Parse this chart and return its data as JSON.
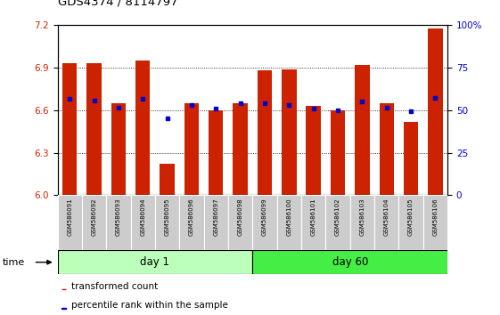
{
  "title": "GDS4374 / 8114797",
  "samples": [
    "GSM586091",
    "GSM586092",
    "GSM586093",
    "GSM586094",
    "GSM586095",
    "GSM586096",
    "GSM586097",
    "GSM586098",
    "GSM586099",
    "GSM586100",
    "GSM586101",
    "GSM586102",
    "GSM586103",
    "GSM586104",
    "GSM586105",
    "GSM586106"
  ],
  "transformed_count": [
    6.93,
    6.93,
    6.65,
    6.95,
    6.22,
    6.65,
    6.6,
    6.65,
    6.88,
    6.89,
    6.63,
    6.6,
    6.92,
    6.65,
    6.52,
    7.18
  ],
  "percentile_rank": [
    6.68,
    6.67,
    6.62,
    6.68,
    6.54,
    6.64,
    6.61,
    6.65,
    6.65,
    6.64,
    6.61,
    6.6,
    6.66,
    6.62,
    6.59,
    6.69
  ],
  "ymin": 6.0,
  "ymax": 7.2,
  "yticks": [
    6.0,
    6.3,
    6.6,
    6.9,
    7.2
  ],
  "right_yticks": [
    0,
    25,
    50,
    75,
    100
  ],
  "bar_color": "#cc2200",
  "dot_color": "#0000cc",
  "day1_color": "#bbffbb",
  "day60_color": "#44ee44",
  "label_bg_color": "#cccccc",
  "bar_width": 0.6,
  "n_day1": 8,
  "n_day60": 8
}
